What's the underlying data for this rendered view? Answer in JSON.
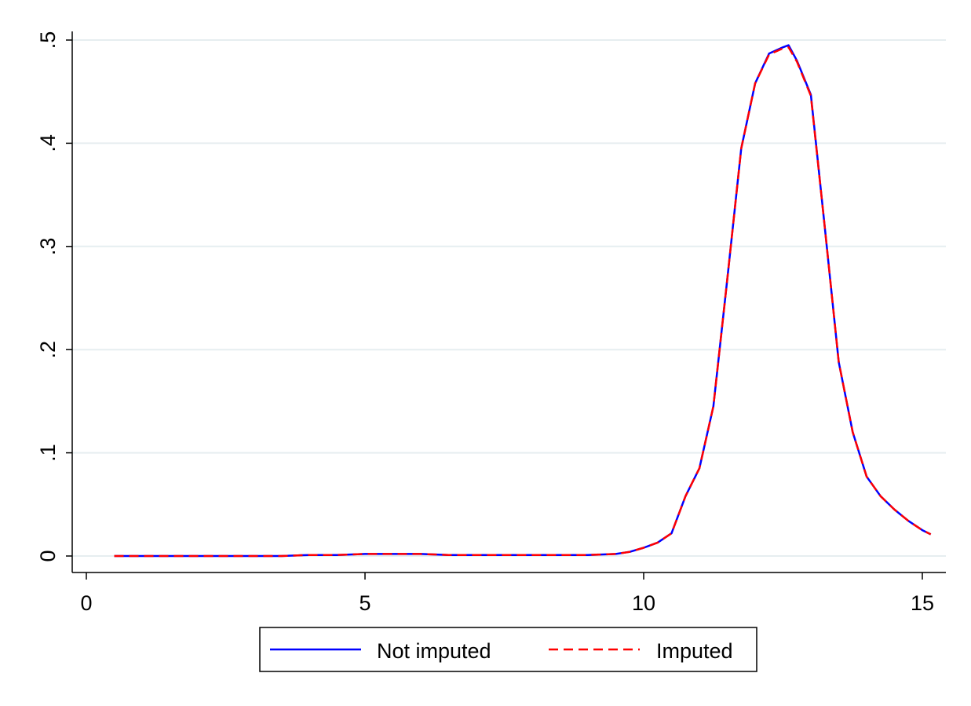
{
  "chart_data": {
    "type": "line",
    "title": "",
    "xlabel": "",
    "ylabel": "",
    "xlim": [
      0,
      15.15
    ],
    "ylim": [
      0,
      0.5
    ],
    "x_ticks": [
      0,
      5,
      10,
      15
    ],
    "x_tick_labels": [
      "0",
      "5",
      "10",
      "15"
    ],
    "y_ticks": [
      0,
      0.1,
      0.2,
      0.3,
      0.4,
      0.5
    ],
    "y_tick_labels": [
      "0",
      ".1",
      ".2",
      ".3",
      ".4",
      ".5"
    ],
    "grid": "horizontal",
    "legend_position": "bottom",
    "series": [
      {
        "name": "Not imputed",
        "color": "#0000ff",
        "style": "solid",
        "x": [
          0.5,
          1,
          2,
          3,
          3.5,
          4,
          4.5,
          5,
          5.5,
          6,
          6.5,
          7,
          7.5,
          8,
          8.5,
          9,
          9.5,
          9.75,
          10,
          10.25,
          10.5,
          10.75,
          11,
          11.25,
          11.5,
          11.75,
          12,
          12.25,
          12.5,
          12.6,
          12.75,
          13,
          13.25,
          13.5,
          13.75,
          14,
          14.25,
          14.5,
          14.75,
          15,
          15.15
        ],
        "y": [
          0.0,
          0.0,
          0.0,
          0.0,
          0.0,
          0.001,
          0.001,
          0.002,
          0.002,
          0.002,
          0.001,
          0.001,
          0.001,
          0.001,
          0.001,
          0.001,
          0.002,
          0.004,
          0.008,
          0.013,
          0.022,
          0.058,
          0.085,
          0.145,
          0.268,
          0.395,
          0.458,
          0.487,
          0.493,
          0.495,
          0.48,
          0.447,
          0.318,
          0.188,
          0.12,
          0.077,
          0.058,
          0.045,
          0.034,
          0.025,
          0.021
        ]
      },
      {
        "name": "Imputed",
        "color": "#ff0000",
        "style": "dashed",
        "x": [
          0.5,
          1,
          2,
          3,
          3.5,
          4,
          4.5,
          5,
          5.5,
          6,
          6.5,
          7,
          7.5,
          8,
          8.5,
          9,
          9.5,
          9.75,
          10,
          10.25,
          10.5,
          10.75,
          11,
          11.25,
          11.5,
          11.75,
          12,
          12.25,
          12.5,
          12.6,
          12.75,
          13,
          13.25,
          13.5,
          13.75,
          14,
          14.25,
          14.5,
          14.75,
          15,
          15.15
        ],
        "y": [
          0.0,
          0.0,
          0.0,
          0.0,
          0.0,
          0.001,
          0.001,
          0.002,
          0.002,
          0.002,
          0.001,
          0.001,
          0.001,
          0.001,
          0.001,
          0.001,
          0.002,
          0.004,
          0.008,
          0.013,
          0.022,
          0.058,
          0.085,
          0.145,
          0.268,
          0.395,
          0.458,
          0.486,
          0.492,
          0.493,
          0.479,
          0.446,
          0.318,
          0.188,
          0.12,
          0.077,
          0.058,
          0.045,
          0.034,
          0.025,
          0.021
        ]
      }
    ]
  }
}
